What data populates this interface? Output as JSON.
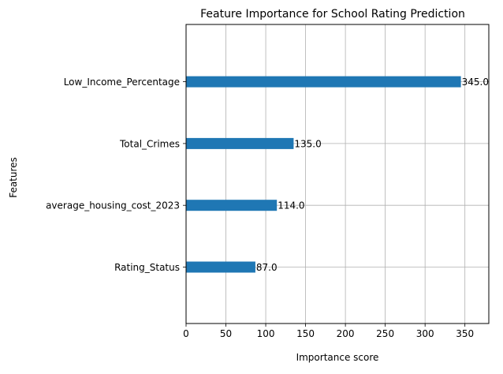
{
  "chart_data": {
    "type": "bar",
    "orientation": "horizontal",
    "title": "Feature Importance for School Rating Prediction",
    "xlabel": "Importance score",
    "ylabel": "Features",
    "categories": [
      "Low_Income_Percentage",
      "Total_Crimes",
      "average_housing_cost_2023",
      "Rating_Status"
    ],
    "values": [
      345.0,
      135.0,
      114.0,
      87.0
    ],
    "value_labels": [
      "345.0",
      "135.0",
      "114.0",
      "87.0"
    ],
    "xlim": [
      0,
      380
    ],
    "xticks": [
      0,
      50,
      100,
      150,
      200,
      250,
      300,
      350
    ],
    "xtick_labels": [
      "0",
      "50",
      "100",
      "150",
      "200",
      "250",
      "300",
      "350"
    ],
    "grid": true,
    "bar_color": "#1f77b4",
    "grid_color": "#b0b0b0"
  }
}
